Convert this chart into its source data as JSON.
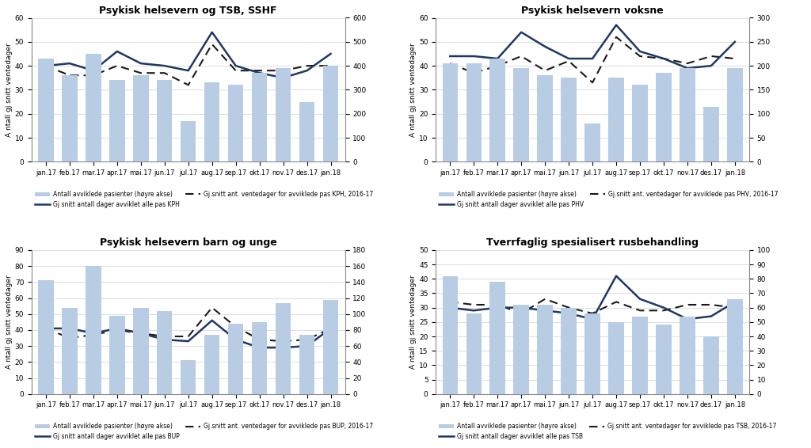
{
  "months": [
    "jan.17",
    "feb.17",
    "mar.17",
    "apr.17",
    "mai.17",
    "jun.17",
    "jul.17",
    "aug.17",
    "sep.17",
    "okt.17",
    "nov.17",
    "des.17",
    "jan.18"
  ],
  "panel1": {
    "title": "Psykisk helsevern og TSB, SSHF",
    "bars": [
      430,
      360,
      450,
      340,
      360,
      340,
      170,
      330,
      320,
      370,
      390,
      250,
      400
    ],
    "line_solid": [
      40,
      41,
      38,
      46,
      41,
      40,
      38,
      54,
      40,
      37,
      35,
      38,
      45
    ],
    "line_dashed": [
      40,
      36,
      36,
      40,
      37,
      37,
      32,
      49,
      38,
      38,
      38,
      40,
      40
    ],
    "ylim_left": [
      0,
      60
    ],
    "ylim_right": [
      0,
      600
    ],
    "yticks_left": [
      0,
      10,
      20,
      30,
      40,
      50,
      60
    ],
    "yticks_right": [
      0,
      100,
      200,
      300,
      400,
      500,
      600
    ],
    "legend_line": "Gj snitt antall dager avviklet alle pas KPH",
    "legend_dashed": "Gj.snitt ant. ventedager for avviklede pas KPH, 2016-17"
  },
  "panel2": {
    "title": "Psykisk helsevern voksne",
    "bars": [
      205,
      205,
      215,
      195,
      180,
      175,
      80,
      175,
      160,
      185,
      195,
      115,
      195
    ],
    "line_solid": [
      44,
      44,
      43,
      54,
      48,
      43,
      43,
      57,
      46,
      43,
      39,
      40,
      50
    ],
    "line_dashed": [
      41,
      37,
      40,
      44,
      38,
      42,
      33,
      52,
      44,
      43,
      41,
      44,
      43
    ],
    "ylim_left": [
      0,
      60
    ],
    "ylim_right": [
      0,
      300
    ],
    "yticks_left": [
      0,
      10,
      20,
      30,
      40,
      50,
      60
    ],
    "yticks_right": [
      0,
      50,
      100,
      150,
      200,
      250,
      300
    ],
    "legend_line": "Gj snitt antall dager avviklet alle pas PHV",
    "legend_dashed": "Gj.snitt ant. ventedager for avviklede pas PHV, 2016-17"
  },
  "panel3": {
    "title": "Psykisk helsevern barn og unge",
    "bars": [
      142,
      108,
      160,
      98,
      108,
      104,
      42,
      74,
      88,
      90,
      114,
      74,
      118
    ],
    "line_solid": [
      41,
      41,
      38,
      41,
      38,
      34,
      33,
      46,
      34,
      29,
      29,
      30,
      41
    ],
    "line_dashed": [
      41,
      35,
      37,
      40,
      38,
      36,
      36,
      54,
      42,
      34,
      33,
      34,
      41
    ],
    "ylim_left": [
      0,
      90
    ],
    "ylim_right": [
      0,
      180
    ],
    "yticks_left": [
      0,
      10,
      20,
      30,
      40,
      50,
      60,
      70,
      80,
      90
    ],
    "yticks_right": [
      0,
      20,
      40,
      60,
      80,
      100,
      120,
      140,
      160,
      180
    ],
    "legend_line": "Gj snitt antall dager avviklet alle pas BUP",
    "legend_dashed": "Gj.snitt ant. ventedager for avviklede pas BUP, 2016-17"
  },
  "panel4": {
    "title": "Tverrfaglig spesialisert rusbehandling",
    "bars": [
      82,
      56,
      78,
      62,
      62,
      60,
      56,
      50,
      54,
      48,
      54,
      40,
      66
    ],
    "line_solid": [
      30,
      29,
      30,
      30,
      29,
      28,
      26,
      41,
      33,
      30,
      26,
      27,
      32
    ],
    "line_dashed": [
      32,
      31,
      31,
      28,
      33,
      30,
      28,
      32,
      29,
      29,
      31,
      31,
      30
    ],
    "ylim_left": [
      0,
      50
    ],
    "ylim_right": [
      0,
      100
    ],
    "yticks_left": [
      0,
      5,
      10,
      15,
      20,
      25,
      30,
      35,
      40,
      45,
      50
    ],
    "yticks_right": [
      0,
      10,
      20,
      30,
      40,
      50,
      60,
      70,
      80,
      90,
      100
    ],
    "legend_line": "Gj snitt antall dager avviklet alle pas TSB",
    "legend_dashed": "Gj.snitt ant. ventedager for avviklede pas TSB, 2016-17"
  },
  "bar_color": "#b8cce4",
  "line_color": "#1f3864",
  "dashed_color": "#1a1a1a",
  "ylabel": "A ntall gj snitt ventedager",
  "legend_bar": "Antall avviklede pasienter (høyre akse)",
  "background_color": "#ffffff",
  "grid_color": "#d0d0d0"
}
